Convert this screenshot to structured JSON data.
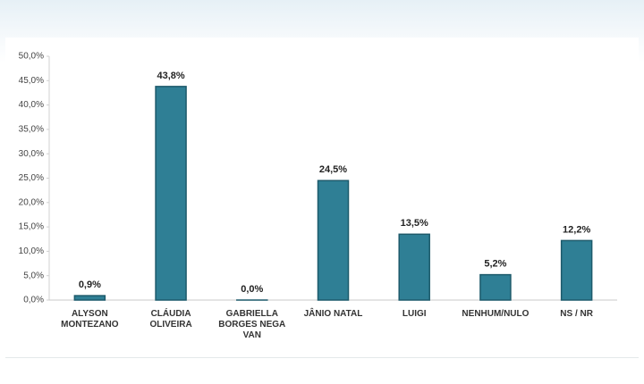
{
  "chart_data": {
    "type": "bar",
    "categories": [
      "ALYSON MONTEZANO",
      "CLÁUDIA OLIVEIRA",
      "GABRIELLA BORGES NEGA VAN",
      "JÂNIO NATAL",
      "LUIGI",
      "NENHUM/NULO",
      "NS / NR"
    ],
    "values": [
      0.9,
      43.8,
      0.0,
      24.5,
      13.5,
      5.2,
      12.2
    ],
    "value_labels": [
      "0,9%",
      "43,8%",
      "0,0%",
      "24,5%",
      "13,5%",
      "5,2%",
      "12,2%"
    ],
    "color": "#2f7f95",
    "ylim": [
      0,
      50
    ],
    "yticks": [
      {
        "value": 0,
        "label": "0,0%"
      },
      {
        "value": 5,
        "label": "5,0%"
      },
      {
        "value": 10,
        "label": "10,0%"
      },
      {
        "value": 15,
        "label": "15,0%"
      },
      {
        "value": 20,
        "label": "20,0%"
      },
      {
        "value": 25,
        "label": "25,0%"
      },
      {
        "value": 30,
        "label": "30,0%"
      },
      {
        "value": 35,
        "label": "35,0%"
      },
      {
        "value": 40,
        "label": "40,0%"
      },
      {
        "value": 45,
        "label": "45,0%"
      },
      {
        "value": 50,
        "label": "50,0%"
      }
    ],
    "grid": false
  }
}
